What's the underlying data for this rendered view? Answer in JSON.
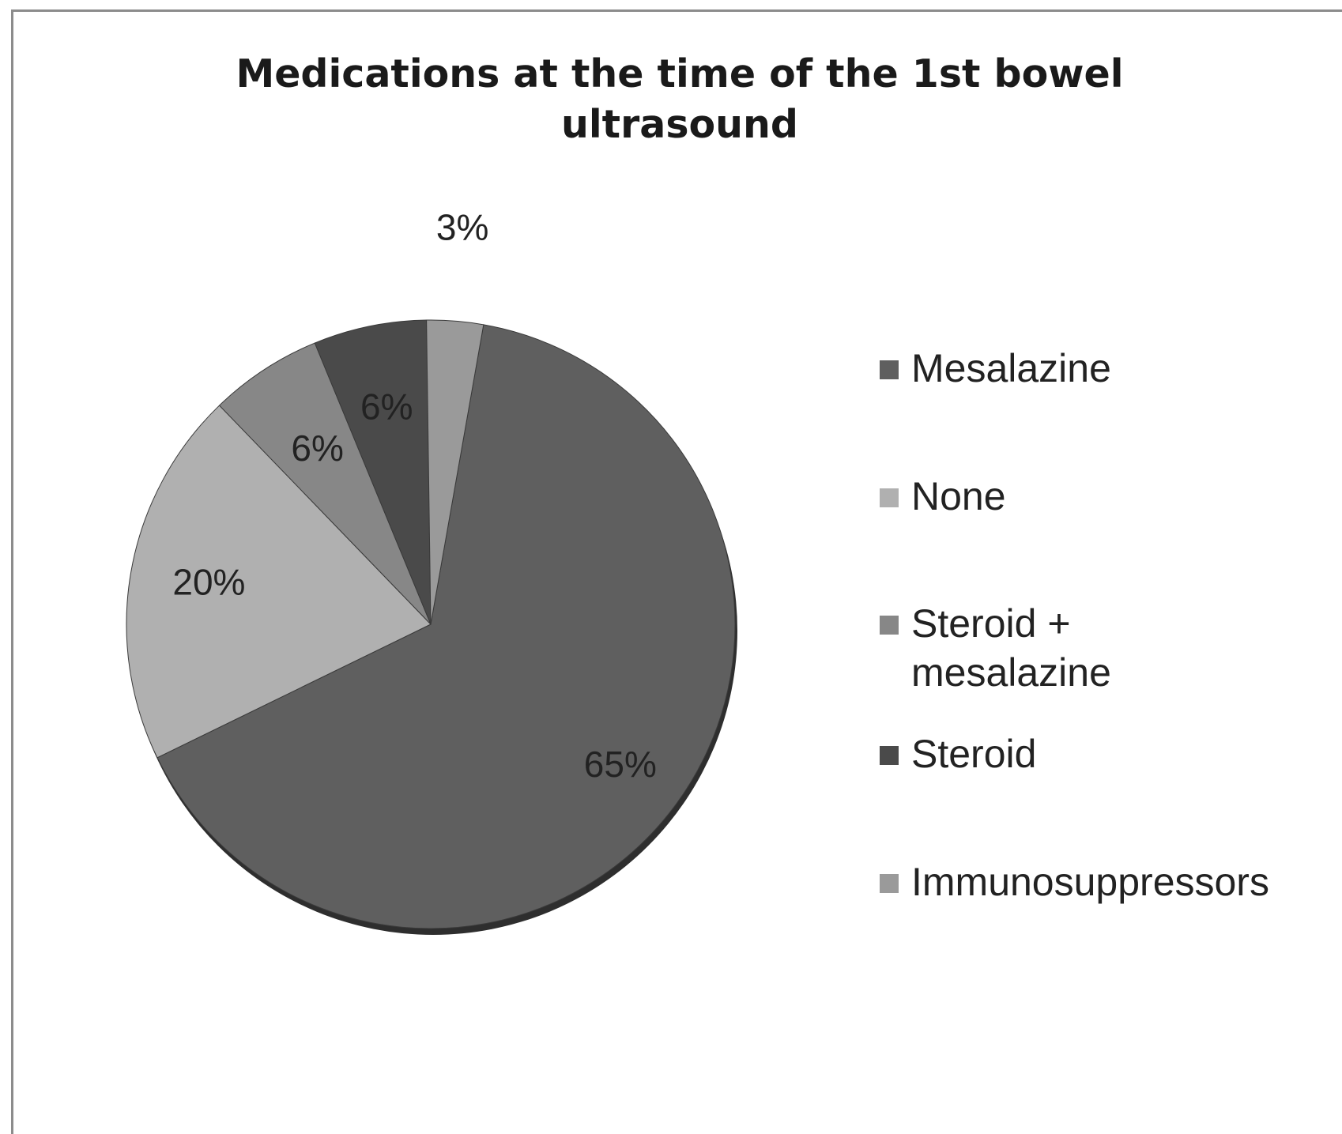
{
  "chart_data": {
    "type": "pie",
    "title_lines": [
      "Medications at the time of the 1st bowel",
      "ultrasound"
    ],
    "categories": [
      "Mesalazine",
      "None",
      "Steroid + mesalazine",
      "Steroid",
      "Immunosuppressors"
    ],
    "values": [
      65,
      20,
      6,
      6,
      3
    ],
    "data_labels": [
      "65%",
      "20%",
      "6%",
      "6%",
      "3%"
    ],
    "legend_lines": [
      [
        "Mesalazine"
      ],
      [
        "None"
      ],
      [
        "Steroid +",
        "mesalazine"
      ],
      [
        "Steroid"
      ],
      [
        "Immunosuppressors"
      ]
    ],
    "colors": [
      "#5f5f5f",
      "#b0b0b0",
      "#878787",
      "#4a4a4a",
      "#9a9a9a"
    ],
    "legend_position": "right"
  }
}
